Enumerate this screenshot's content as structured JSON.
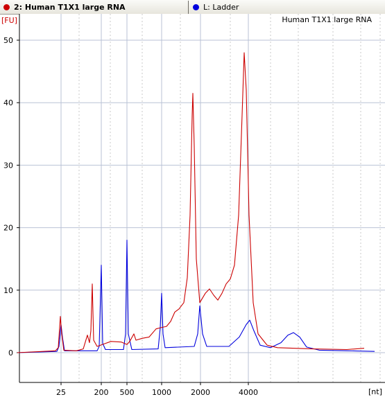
{
  "legend": {
    "items": [
      {
        "label": "2: Human T1X1 large RNA",
        "color": "#cc0000"
      },
      {
        "label": "L: Ladder",
        "color": "#0000dd"
      }
    ]
  },
  "chart_data": {
    "type": "line",
    "title": "Human T1X1 large RNA",
    "ylabel": "[FU]",
    "xlabel": "[nt]",
    "ylim": [
      -5,
      52
    ],
    "yticks": [
      0,
      10,
      20,
      30,
      40,
      50
    ],
    "xticks": [
      "25",
      "200",
      "500",
      "1000",
      "2000",
      "4000"
    ],
    "x_scale": "migration time (ladder-aligned, non-linear nt)",
    "grid": true,
    "series": [
      {
        "name": "2: Human T1X1 large RNA",
        "color": "#cc0000",
        "points": [
          {
            "x": 25,
            "y": 0
          },
          {
            "x": 80,
            "y": 0.3
          },
          {
            "x": 84,
            "y": 0.8
          },
          {
            "x": 87,
            "y": 5.8
          },
          {
            "x": 89,
            "y": 3
          },
          {
            "x": 92,
            "y": 0.4
          },
          {
            "x": 110,
            "y": 0.3
          },
          {
            "x": 120,
            "y": 0.6
          },
          {
            "x": 126,
            "y": 2.8
          },
          {
            "x": 129,
            "y": 1.6
          },
          {
            "x": 131,
            "y": 3.5
          },
          {
            "x": 133,
            "y": 11
          },
          {
            "x": 135,
            "y": 2
          },
          {
            "x": 140,
            "y": 1
          },
          {
            "x": 150,
            "y": 1.4
          },
          {
            "x": 160,
            "y": 1.8
          },
          {
            "x": 175,
            "y": 1.7
          },
          {
            "x": 183,
            "y": 1.3
          },
          {
            "x": 187,
            "y": 1.8
          },
          {
            "x": 193,
            "y": 3
          },
          {
            "x": 196,
            "y": 2
          },
          {
            "x": 205,
            "y": 2.3
          },
          {
            "x": 215,
            "y": 2.5
          },
          {
            "x": 225,
            "y": 3.8
          },
          {
            "x": 232,
            "y": 4
          },
          {
            "x": 240,
            "y": 4.2
          },
          {
            "x": 246,
            "y": 5
          },
          {
            "x": 252,
            "y": 6.5
          },
          {
            "x": 258,
            "y": 7
          },
          {
            "x": 265,
            "y": 8
          },
          {
            "x": 270,
            "y": 12
          },
          {
            "x": 274,
            "y": 22
          },
          {
            "x": 277,
            "y": 38
          },
          {
            "x": 278,
            "y": 41.5
          },
          {
            "x": 280,
            "y": 33
          },
          {
            "x": 283,
            "y": 15
          },
          {
            "x": 288,
            "y": 8
          },
          {
            "x": 296,
            "y": 9.5
          },
          {
            "x": 302,
            "y": 10.2
          },
          {
            "x": 308,
            "y": 9.2
          },
          {
            "x": 314,
            "y": 8.4
          },
          {
            "x": 320,
            "y": 9.5
          },
          {
            "x": 326,
            "y": 11
          },
          {
            "x": 332,
            "y": 11.8
          },
          {
            "x": 338,
            "y": 14
          },
          {
            "x": 344,
            "y": 22
          },
          {
            "x": 349,
            "y": 38
          },
          {
            "x": 352,
            "y": 48
          },
          {
            "x": 355,
            "y": 42
          },
          {
            "x": 359,
            "y": 22
          },
          {
            "x": 365,
            "y": 8
          },
          {
            "x": 372,
            "y": 3
          },
          {
            "x": 385,
            "y": 1.2
          },
          {
            "x": 400,
            "y": 0.8
          },
          {
            "x": 450,
            "y": 0.6
          },
          {
            "x": 500,
            "y": 0.5
          },
          {
            "x": 525,
            "y": 0.7
          }
        ]
      },
      {
        "name": "L: Ladder",
        "color": "#0000dd",
        "points": [
          {
            "x": 25,
            "y": 0
          },
          {
            "x": 82,
            "y": 0.2
          },
          {
            "x": 85,
            "y": 1
          },
          {
            "x": 88,
            "y": 4.5
          },
          {
            "x": 90,
            "y": 2.5
          },
          {
            "x": 93,
            "y": 0.3
          },
          {
            "x": 140,
            "y": 0.3
          },
          {
            "x": 143,
            "y": 1
          },
          {
            "x": 146,
            "y": 14
          },
          {
            "x": 148,
            "y": 1.5
          },
          {
            "x": 152,
            "y": 0.5
          },
          {
            "x": 178,
            "y": 0.5
          },
          {
            "x": 181,
            "y": 3
          },
          {
            "x": 183,
            "y": 18
          },
          {
            "x": 185,
            "y": 3
          },
          {
            "x": 190,
            "y": 0.5
          },
          {
            "x": 228,
            "y": 0.6
          },
          {
            "x": 231,
            "y": 4
          },
          {
            "x": 233,
            "y": 9.5
          },
          {
            "x": 235,
            "y": 3
          },
          {
            "x": 238,
            "y": 0.8
          },
          {
            "x": 280,
            "y": 1
          },
          {
            "x": 285,
            "y": 3
          },
          {
            "x": 288,
            "y": 7.5
          },
          {
            "x": 292,
            "y": 3
          },
          {
            "x": 298,
            "y": 1
          },
          {
            "x": 330,
            "y": 1
          },
          {
            "x": 345,
            "y": 2.5
          },
          {
            "x": 355,
            "y": 4.5
          },
          {
            "x": 360,
            "y": 5.2
          },
          {
            "x": 366,
            "y": 3.5
          },
          {
            "x": 375,
            "y": 1.2
          },
          {
            "x": 390,
            "y": 0.8
          },
          {
            "x": 405,
            "y": 1.6
          },
          {
            "x": 415,
            "y": 2.8
          },
          {
            "x": 423,
            "y": 3.2
          },
          {
            "x": 432,
            "y": 2.5
          },
          {
            "x": 442,
            "y": 0.9
          },
          {
            "x": 460,
            "y": 0.4
          },
          {
            "x": 500,
            "y": 0.3
          },
          {
            "x": 540,
            "y": 0.2
          }
        ]
      }
    ]
  }
}
